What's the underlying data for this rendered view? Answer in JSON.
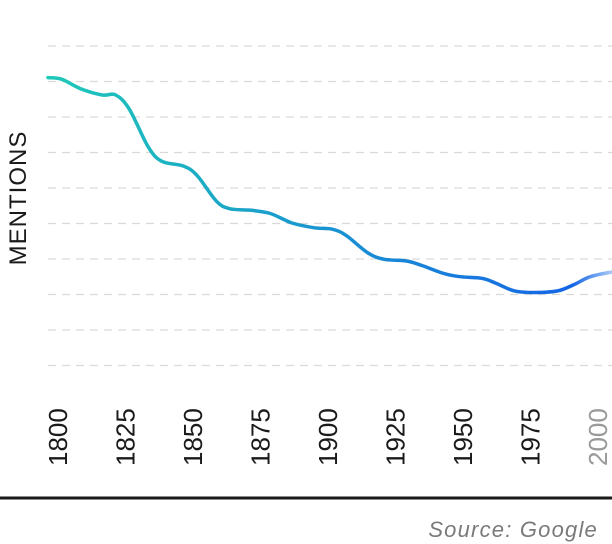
{
  "chart_data": {
    "type": "line",
    "title": "",
    "xlabel": "",
    "ylabel": "MENTIONS",
    "x_ticks": [
      "1800",
      "1825",
      "1850",
      "1875",
      "1900",
      "1925",
      "1950",
      "1975",
      "2000"
    ],
    "faded_ticks": [
      "2000"
    ],
    "xlim": [
      1800,
      2008
    ],
    "ylim": [
      0,
      10
    ],
    "grid": true,
    "series": [
      {
        "x": [
          1800,
          1805,
          1812,
          1820,
          1825,
          1830,
          1837,
          1842,
          1850,
          1855,
          1862,
          1867,
          1875,
          1882,
          1890,
          1898,
          1905,
          1910,
          1918,
          1924,
          1932,
          1938,
          1946,
          1952,
          1960,
          1965,
          1972,
          1980,
          1988,
          1994,
          2000,
          2008
        ],
        "y": [
          9.0,
          8.95,
          8.65,
          8.45,
          8.45,
          8.0,
          6.8,
          6.35,
          6.2,
          5.9,
          5.1,
          4.85,
          4.8,
          4.7,
          4.4,
          4.25,
          4.2,
          4.0,
          3.45,
          3.25,
          3.2,
          3.05,
          2.8,
          2.7,
          2.65,
          2.5,
          2.25,
          2.2,
          2.25,
          2.45,
          2.7,
          2.85
        ]
      }
    ],
    "colors": {
      "start": "#1ec9b8",
      "end": "#1565e6",
      "fade": "#a9c9f7"
    }
  },
  "source": "Source: Google"
}
